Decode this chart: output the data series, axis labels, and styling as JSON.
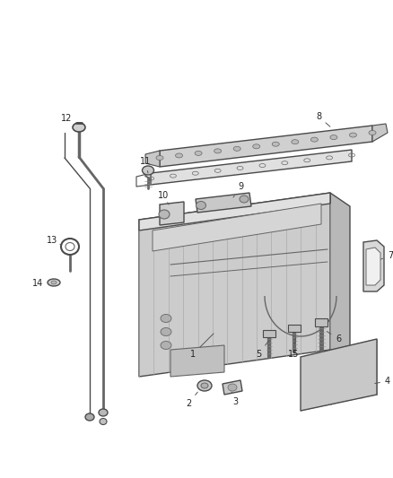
{
  "bg_color": "#ffffff",
  "lc": "#4a4a4a",
  "lc_light": "#888888",
  "lc_mid": "#666666",
  "fc_pan": "#c8c8c8",
  "fc_pan_top": "#e0e0e0",
  "fc_pan_side": "#b0b0b0",
  "fc_gasket": "#d8d8d8",
  "fc_plate": "#c0c0c0",
  "label_fs": 7,
  "label_color": "#222222",
  "arrow_color": "#555555"
}
